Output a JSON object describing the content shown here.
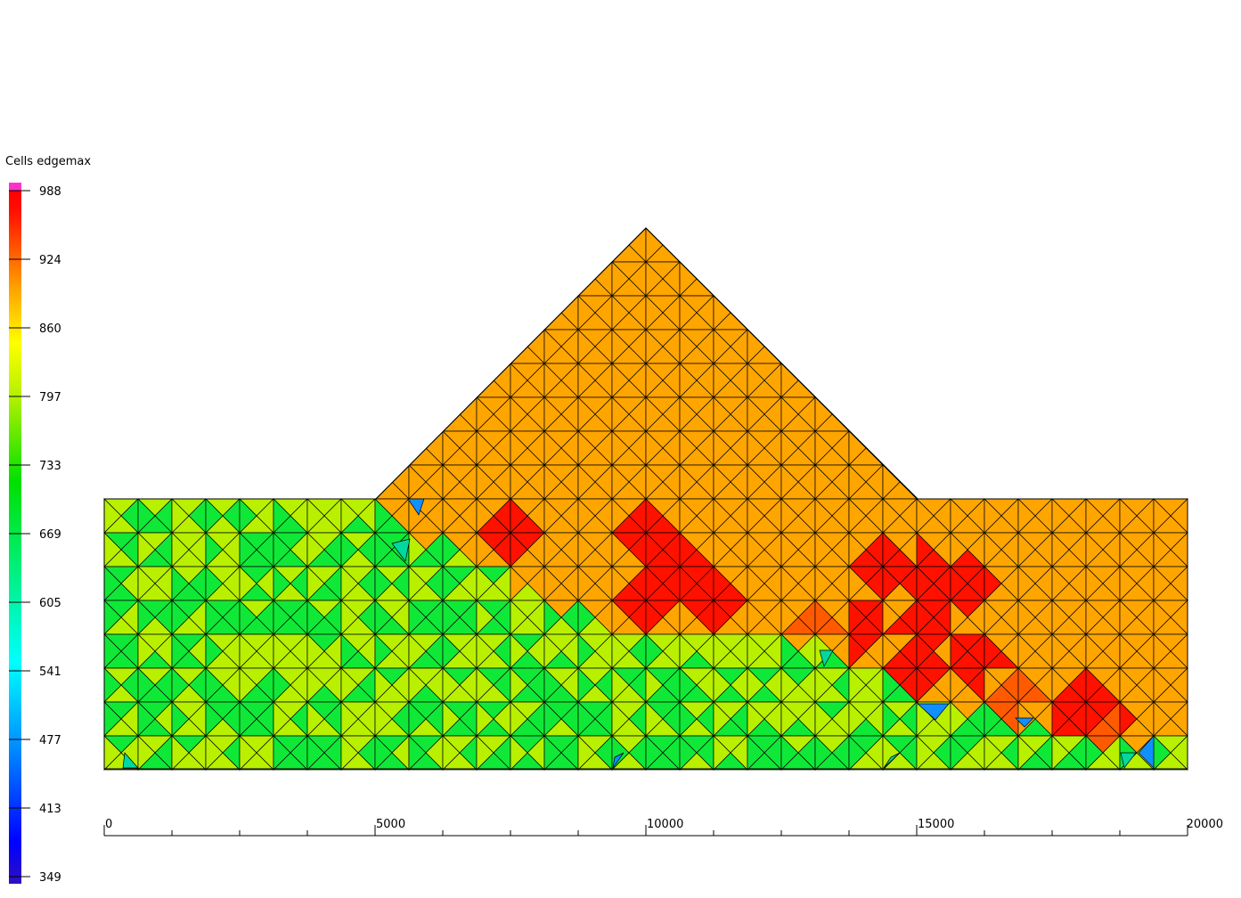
{
  "legend": {
    "title": "Cells edgemax",
    "ticks": [
      "988",
      "924",
      "860",
      "797",
      "733",
      "669",
      "605",
      "541",
      "477",
      "413",
      "349"
    ]
  },
  "axis": {
    "ticks": [
      "0",
      "5000",
      "10000",
      "15000",
      "20000"
    ],
    "range": [
      0,
      20000
    ]
  },
  "colors": {
    "ramp_top": "#ff33cc",
    "orange": "#ffa500",
    "red": "#ff1100",
    "dark_orange": "#ff5a00",
    "yellow_green": "#b8f000",
    "green": "#10e838",
    "teal": "#00d8a0",
    "blue": "#1090ff",
    "mesh_line": "#000000"
  }
}
